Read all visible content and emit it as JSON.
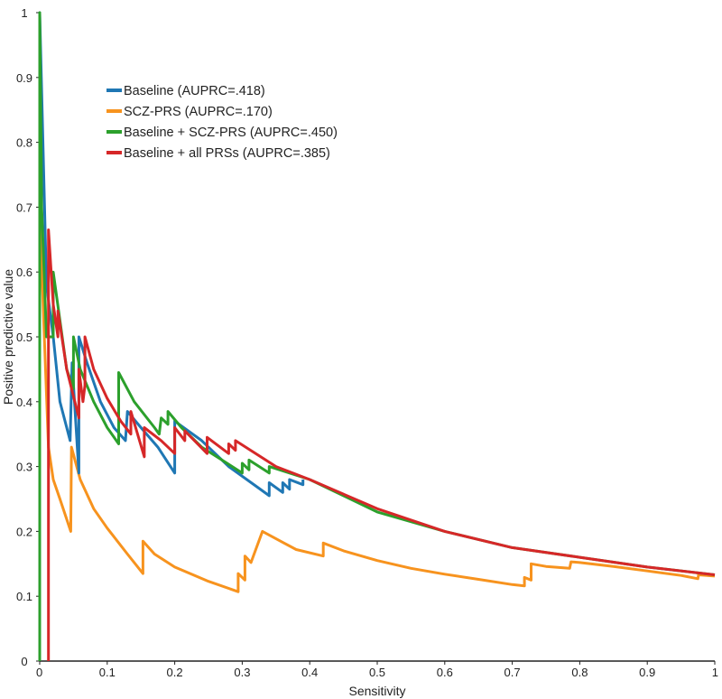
{
  "chart_data": {
    "type": "line",
    "title": "",
    "xlabel": "Sensitivity",
    "ylabel": "Positive predictive value",
    "xlim": [
      0,
      1
    ],
    "ylim": [
      0,
      1
    ],
    "x_ticks": [
      "0",
      "0.1",
      "0.2",
      "0.3",
      "0.4",
      "0.5",
      "0.6",
      "0.7",
      "0.8",
      "0.9",
      "1"
    ],
    "y_ticks": [
      "0",
      "0.1",
      "0.2",
      "0.3",
      "0.4",
      "0.5",
      "0.6",
      "0.7",
      "0.8",
      "0.9",
      "1"
    ],
    "grid": false,
    "legend_position": "top-left",
    "series": [
      {
        "name": "SCZ-PRS (AUPRC=.170)",
        "color": "#f7931e",
        "x": [
          0.0,
          0.0,
          0.013,
          0.02,
          0.03,
          0.046,
          0.047,
          0.06,
          0.08,
          0.1,
          0.13,
          0.153,
          0.153,
          0.17,
          0.2,
          0.25,
          0.294,
          0.294,
          0.304,
          0.304,
          0.313,
          0.313,
          0.33,
          0.33,
          0.36,
          0.38,
          0.42,
          0.42,
          0.45,
          0.5,
          0.55,
          0.6,
          0.65,
          0.7,
          0.718,
          0.718,
          0.728,
          0.728,
          0.75,
          0.785,
          0.787,
          0.8,
          0.85,
          0.9,
          0.95,
          0.975,
          0.976,
          1.0
        ],
        "y": [
          0.0,
          0.69,
          0.33,
          0.28,
          0.25,
          0.2,
          0.33,
          0.28,
          0.235,
          0.205,
          0.165,
          0.135,
          0.185,
          0.165,
          0.145,
          0.123,
          0.107,
          0.135,
          0.125,
          0.162,
          0.152,
          0.152,
          0.2,
          0.2,
          0.183,
          0.172,
          0.162,
          0.182,
          0.17,
          0.155,
          0.143,
          0.134,
          0.126,
          0.118,
          0.116,
          0.129,
          0.125,
          0.15,
          0.146,
          0.143,
          0.153,
          0.152,
          0.146,
          0.139,
          0.132,
          0.127,
          0.133,
          0.131
        ]
      },
      {
        "name": "Baseline (AUPRC=.418)",
        "color": "#1f77b4",
        "x": [
          0.0,
          0.0,
          0.01,
          0.02,
          0.03,
          0.045,
          0.048,
          0.058,
          0.058,
          0.07,
          0.09,
          0.11,
          0.127,
          0.13,
          0.15,
          0.175,
          0.2,
          0.2,
          0.24,
          0.28,
          0.32,
          0.34,
          0.34,
          0.36,
          0.36,
          0.37,
          0.37,
          0.39,
          0.39
        ],
        "y": [
          0.0,
          1.0,
          0.58,
          0.5,
          0.4,
          0.34,
          0.46,
          0.29,
          0.5,
          0.46,
          0.4,
          0.36,
          0.34,
          0.385,
          0.36,
          0.33,
          0.29,
          0.37,
          0.34,
          0.3,
          0.27,
          0.255,
          0.275,
          0.26,
          0.275,
          0.265,
          0.28,
          0.272,
          0.28
        ]
      },
      {
        "name": "Baseline + SCZ-PRS (AUPRC=.450)",
        "color": "#2ca02c",
        "x": [
          0.0,
          0.0,
          0.003,
          0.01,
          0.02,
          0.02,
          0.04,
          0.05,
          0.05,
          0.06,
          0.08,
          0.1,
          0.117,
          0.117,
          0.14,
          0.17,
          0.177,
          0.18,
          0.19,
          0.19,
          0.21,
          0.24,
          0.27,
          0.3,
          0.3,
          0.31,
          0.31,
          0.34,
          0.34,
          0.4,
          0.5,
          0.6,
          0.7,
          0.8,
          0.9,
          1.0
        ],
        "y": [
          0.0,
          1.0,
          0.7,
          0.5,
          0.5,
          0.6,
          0.45,
          0.42,
          0.5,
          0.45,
          0.4,
          0.36,
          0.335,
          0.445,
          0.4,
          0.36,
          0.35,
          0.375,
          0.365,
          0.385,
          0.36,
          0.33,
          0.31,
          0.29,
          0.305,
          0.295,
          0.31,
          0.29,
          0.3,
          0.28,
          0.23,
          0.2,
          0.175,
          0.16,
          0.145,
          0.133
        ]
      },
      {
        "name": "Baseline + all PRSs (AUPRC=.385)",
        "color": "#d62728",
        "x": [
          0.013,
          0.013,
          0.02,
          0.027,
          0.027,
          0.04,
          0.058,
          0.058,
          0.064,
          0.067,
          0.067,
          0.08,
          0.1,
          0.12,
          0.135,
          0.135,
          0.155,
          0.155,
          0.18,
          0.2,
          0.2,
          0.215,
          0.215,
          0.248,
          0.248,
          0.28,
          0.28,
          0.29,
          0.29,
          0.35,
          0.4,
          0.5,
          0.6,
          0.7,
          0.8,
          0.9,
          1.0
        ],
        "y": [
          0.0,
          0.665,
          0.55,
          0.5,
          0.54,
          0.45,
          0.375,
          0.45,
          0.4,
          0.425,
          0.5,
          0.45,
          0.405,
          0.37,
          0.35,
          0.385,
          0.315,
          0.36,
          0.34,
          0.32,
          0.36,
          0.34,
          0.355,
          0.32,
          0.345,
          0.32,
          0.335,
          0.325,
          0.34,
          0.3,
          0.28,
          0.235,
          0.2,
          0.175,
          0.16,
          0.145,
          0.133
        ]
      }
    ]
  }
}
